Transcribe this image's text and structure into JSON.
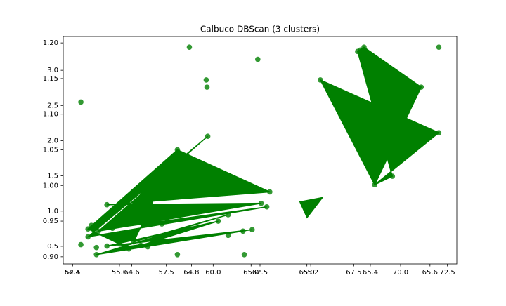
{
  "chart_data": {
    "type": "scatter",
    "title": "Calbuco DBScan (3 clusters)",
    "xlim": [
      52.0,
      73.0
    ],
    "xticks": [
      52.5,
      {
        "value": 55.0,
        "label": "55.0"
      },
      57.5,
      {
        "value": 60.0,
        "label": "60.0"
      },
      62.5,
      {
        "value": 65.0,
        "label": "65.0"
      },
      67.5,
      {
        "value": 70.0,
        "label": "70.0"
      },
      72.5
    ],
    "ylim": [
      0.89,
      1.209
    ],
    "yticks": [
      {
        "value": 0.9,
        "label": "0.90"
      },
      0.95,
      {
        "value": 1.0,
        "label": "1.00"
      },
      1.05,
      {
        "value": 1.1,
        "label": "1.10"
      },
      1.15,
      {
        "value": 1.2,
        "label": "1.20"
      }
    ],
    "x2lim": [
      64.37,
      65.69
    ],
    "x2ticks": [
      64.4,
      64.6,
      64.8,
      {
        "value": 65.0,
        "label": "65.0"
      },
      65.2,
      65.4,
      65.6
    ],
    "y2lim": [
      0.25,
      3.48
    ],
    "y2ticks": [
      0.5,
      {
        "value": 1.0,
        "label": "1.0"
      },
      1.5,
      {
        "value": 2.0,
        "label": "2.0"
      },
      2.5,
      {
        "value": 3.0,
        "label": "3.0"
      }
    ],
    "series": [
      {
        "color": "#008000",
        "x": [
          65.72,
          67.71,
          68.05,
          67.86,
          71.1,
          68.62,
          69.56,
          72.04,
          72.04,
          52.94,
          58.73,
          62.38,
          59.63,
          59.67,
          59.71,
          58.09,
          63.02,
          62.56,
          62.86,
          54.33,
          52.94,
          53.32,
          53.5,
          53.77,
          53.77,
          54.33,
          55.31,
          56.14,
          56.89,
          57.49,
          58.09,
          60.27,
          60.8,
          61.59,
          62.08,
          61.66,
          60.8,
          53.32,
          53.88,
          54.63,
          57.26,
          55.76,
          56.51,
          55.01,
          55.5
        ],
        "values": [
          1.148,
          1.188,
          1.194,
          1.19,
          1.138,
          1.001,
          1.013,
          1.074,
          1.194,
          1.117,
          1.194,
          1.177,
          1.148,
          1.138,
          1.069,
          1.05,
          0.991,
          0.975,
          0.97,
          0.973,
          0.917,
          0.939,
          0.944,
          0.913,
          0.903,
          0.915,
          0.914,
          0.916,
          0.927,
          0.96,
          0.903,
          0.95,
          0.959,
          0.936,
          0.938,
          0.903,
          0.93,
          0.928,
          0.936,
          0.94,
          0.946,
          0.921,
          0.914,
          0.918,
          0.911
        ]
      }
    ],
    "lines": [
      {
        "color": "#008000",
        "x": [
          53.32,
          58.09,
          63.02,
          54.33,
          62.56,
          53.88,
          59.71,
          53.32,
          62.86,
          54.63,
          58.09,
          55.76,
          60.8,
          53.77,
          61.59,
          56.14,
          60.27,
          54.33,
          62.08,
          55.31
        ],
        "values": [
          0.939,
          1.05,
          0.991,
          0.973,
          0.975,
          0.936,
          1.069,
          0.928,
          0.97,
          0.94,
          1.05,
          0.921,
          0.959,
          0.903,
          0.936,
          0.916,
          0.95,
          0.915,
          0.938,
          0.914
        ]
      },
      {
        "color": "#008000",
        "x": [
          65.72,
          68.62,
          71.1,
          68.05,
          67.71,
          69.56,
          68.62,
          72.04
        ],
        "values": [
          1.148,
          1.001,
          1.138,
          1.194,
          1.188,
          1.013,
          1.001,
          1.074
        ]
      },
      {
        "color": "#008000",
        "x": [
          64.63,
          65.83,
          65.01
        ],
        "values": [
          0.977,
          0.983,
          0.955
        ]
      }
    ]
  }
}
